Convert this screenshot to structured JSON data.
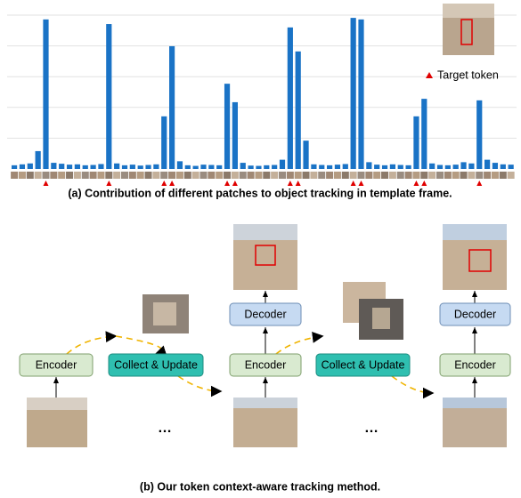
{
  "chart_data": {
    "type": "bar",
    "title": "(a) Contribution of different patches to object tracking in template frame.",
    "legend_label": "Target token",
    "color": "#1a73c6",
    "target_color": "#e00000",
    "ylim": [
      0,
      5
    ],
    "grid_lines": [
      1,
      2,
      3,
      4,
      5
    ],
    "values": [
      0.12,
      0.15,
      0.18,
      0.58,
      4.86,
      0.2,
      0.17,
      0.14,
      0.15,
      0.12,
      0.13,
      0.16,
      4.71,
      0.18,
      0.12,
      0.14,
      0.11,
      0.13,
      0.15,
      1.71,
      3.99,
      0.25,
      0.12,
      0.1,
      0.14,
      0.13,
      0.12,
      2.77,
      2.17,
      0.2,
      0.11,
      0.1,
      0.12,
      0.13,
      0.3,
      4.6,
      3.82,
      0.92,
      0.15,
      0.13,
      0.12,
      0.14,
      0.16,
      4.91,
      4.86,
      0.22,
      0.14,
      0.12,
      0.15,
      0.13,
      0.12,
      1.71,
      2.28,
      0.18,
      0.13,
      0.12,
      0.14,
      0.22,
      0.18,
      2.23,
      0.3,
      0.2,
      0.15,
      0.14
    ],
    "target_token_indices": [
      4,
      12,
      19,
      20,
      27,
      28,
      35,
      36,
      43,
      44,
      51,
      52,
      59
    ]
  },
  "diagram": {
    "caption": "(b) Our token context-aware tracking method.",
    "nodes": [
      "Encoder",
      "Collect & Update",
      "Encoder",
      "Decoder",
      "Collect & Update",
      "Encoder",
      "Decoder"
    ],
    "ellipses": [
      "…",
      "…"
    ]
  }
}
